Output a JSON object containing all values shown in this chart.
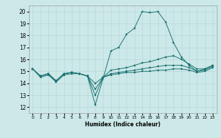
{
  "title": "",
  "xlabel": "Humidex (Indice chaleur)",
  "ylabel": "",
  "xlim": [
    -0.5,
    23.5
  ],
  "ylim": [
    11.5,
    20.5
  ],
  "xticks": [
    0,
    1,
    2,
    3,
    4,
    5,
    6,
    7,
    8,
    9,
    10,
    11,
    12,
    13,
    14,
    15,
    16,
    17,
    18,
    19,
    20,
    21,
    22,
    23
  ],
  "yticks": [
    12,
    13,
    14,
    15,
    16,
    17,
    18,
    19,
    20
  ],
  "bg_color": "#cce8e8",
  "grid_color": "#b8d8d8",
  "line_color": "#1a7070",
  "lines": [
    {
      "x": [
        0,
        1,
        2,
        3,
        4,
        5,
        6,
        7,
        8,
        9,
        10,
        11,
        12,
        13,
        14,
        15,
        16,
        17,
        18,
        19,
        20,
        21,
        22,
        23
      ],
      "y": [
        15.2,
        14.5,
        14.7,
        14.1,
        14.7,
        14.8,
        14.8,
        14.6,
        12.2,
        14.4,
        16.7,
        17.0,
        18.1,
        18.6,
        20.0,
        19.9,
        20.0,
        19.1,
        17.4,
        16.2,
        15.5,
        15.0,
        15.2,
        15.5
      ]
    },
    {
      "x": [
        0,
        1,
        2,
        3,
        4,
        5,
        6,
        7,
        8,
        9,
        10,
        11,
        12,
        13,
        14,
        15,
        16,
        17,
        18,
        19,
        20,
        21,
        22,
        23
      ],
      "y": [
        15.2,
        14.6,
        14.8,
        14.2,
        14.8,
        14.9,
        14.8,
        14.6,
        13.0,
        14.5,
        15.1,
        15.2,
        15.3,
        15.5,
        15.7,
        15.8,
        16.0,
        16.2,
        16.3,
        16.0,
        15.6,
        15.2,
        15.2,
        15.5
      ]
    },
    {
      "x": [
        0,
        1,
        2,
        3,
        4,
        5,
        6,
        7,
        8,
        9,
        10,
        11,
        12,
        13,
        14,
        15,
        16,
        17,
        18,
        19,
        20,
        21,
        22,
        23
      ],
      "y": [
        15.2,
        14.6,
        14.8,
        14.2,
        14.8,
        14.9,
        14.8,
        14.6,
        13.5,
        14.5,
        14.8,
        14.9,
        15.0,
        15.1,
        15.2,
        15.3,
        15.4,
        15.5,
        15.5,
        15.5,
        15.3,
        15.0,
        15.1,
        15.4
      ]
    },
    {
      "x": [
        0,
        1,
        2,
        3,
        4,
        5,
        6,
        7,
        8,
        9,
        10,
        11,
        12,
        13,
        14,
        15,
        16,
        17,
        18,
        19,
        20,
        21,
        22,
        23
      ],
      "y": [
        15.2,
        14.6,
        14.8,
        14.2,
        14.8,
        14.9,
        14.8,
        14.6,
        14.0,
        14.5,
        14.7,
        14.8,
        14.9,
        14.9,
        15.0,
        15.0,
        15.1,
        15.1,
        15.2,
        15.2,
        15.1,
        14.9,
        15.0,
        15.3
      ]
    }
  ]
}
